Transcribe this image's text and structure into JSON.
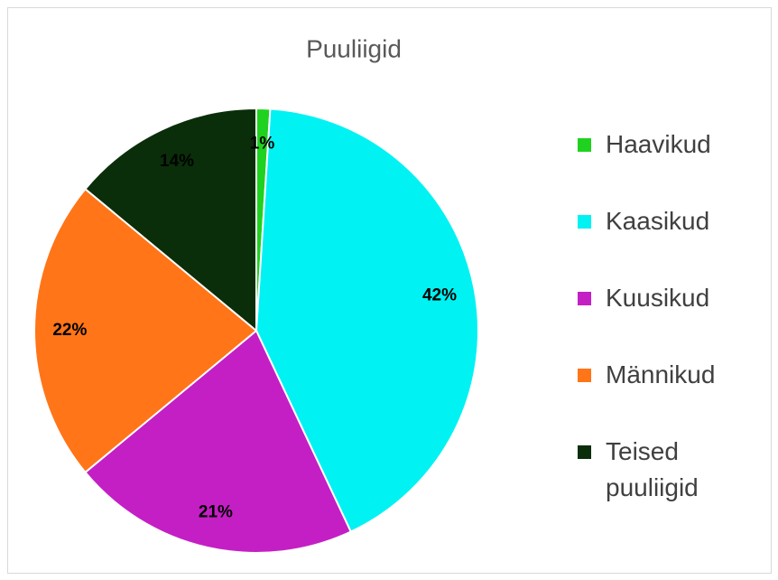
{
  "chart_data": {
    "type": "pie",
    "title": "Puuliigid",
    "categories": [
      "Haavikud",
      "Kaasikud",
      "Kuusikud",
      "Männikud",
      "Teised puuliigid"
    ],
    "values": [
      1,
      42,
      21,
      22,
      14
    ],
    "value_labels": [
      "1%",
      "42%",
      "21%",
      "22%",
      "14%"
    ],
    "colors": [
      "#1fd21f",
      "#00f2f2",
      "#c41fc4",
      "#ff7518",
      "#0a2e0a"
    ],
    "legend": "right"
  }
}
